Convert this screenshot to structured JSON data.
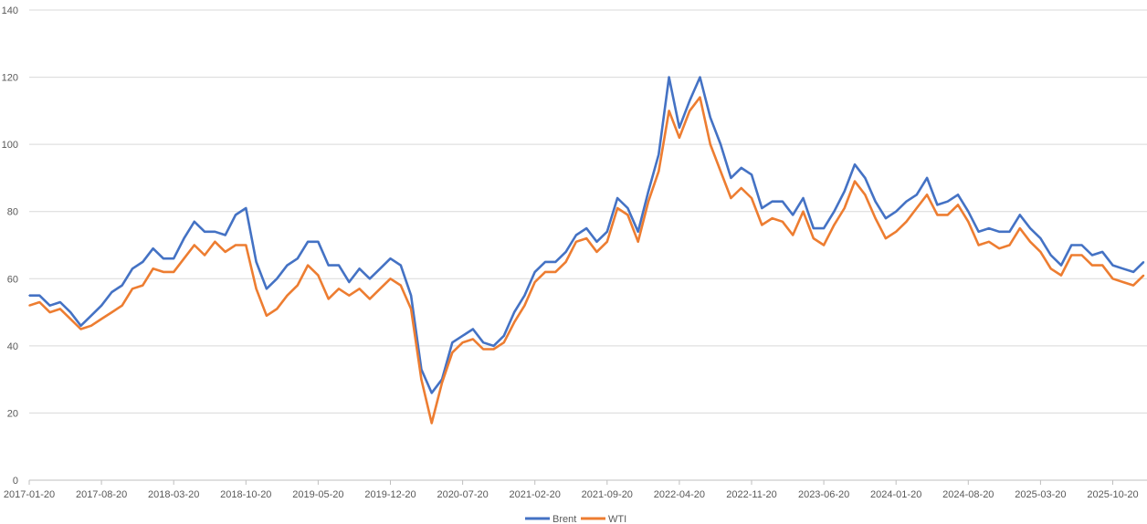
{
  "chart_data": {
    "type": "line",
    "title": "",
    "xlabel": "",
    "ylabel": "",
    "ylim": [
      0,
      140
    ],
    "yticks": [
      0,
      20,
      40,
      60,
      80,
      100,
      120,
      140
    ],
    "grid": true,
    "legend_position": "bottom",
    "x_start": "2017-01",
    "x_step": "1 month",
    "x_tick_labels": [
      "2017-01-20",
      "2017-08-20",
      "2018-03-20",
      "2018-10-20",
      "2019-05-20",
      "2019-12-20",
      "2020-07-20",
      "2021-02-20",
      "2021-09-20",
      "2022-04-20",
      "2022-11-20",
      "2023-06-20",
      "2024-01-20",
      "2024-08-20",
      "2025-03-20",
      "2025-10-20"
    ],
    "series": [
      {
        "name": "Brent",
        "color": "#4472C4",
        "values": [
          55,
          55,
          52,
          53,
          50,
          46,
          49,
          52,
          56,
          58,
          63,
          65,
          69,
          66,
          66,
          72,
          77,
          74,
          74,
          73,
          79,
          81,
          65,
          57,
          60,
          64,
          66,
          71,
          71,
          64,
          64,
          59,
          63,
          60,
          63,
          66,
          64,
          55,
          33,
          26,
          30,
          41,
          43,
          45,
          41,
          40,
          43,
          50,
          55,
          62,
          65,
          65,
          68,
          73,
          75,
          71,
          74,
          84,
          81,
          74,
          86,
          97,
          120,
          105,
          113,
          120,
          108,
          100,
          90,
          93,
          91,
          81,
          83,
          83,
          79,
          84,
          75,
          75,
          80,
          86,
          94,
          90,
          83,
          78,
          80,
          83,
          85,
          90,
          82,
          83,
          85,
          80,
          74,
          75,
          74,
          74,
          79,
          75,
          72,
          67,
          64,
          70,
          70,
          67,
          68,
          64,
          63,
          62,
          65
        ]
      },
      {
        "name": "WTI",
        "color": "#ED7D31",
        "values": [
          52,
          53,
          50,
          51,
          48,
          45,
          46,
          48,
          50,
          52,
          57,
          58,
          63,
          62,
          62,
          66,
          70,
          67,
          71,
          68,
          70,
          70,
          57,
          49,
          51,
          55,
          58,
          64,
          61,
          54,
          57,
          55,
          57,
          54,
          57,
          60,
          58,
          51,
          30,
          17,
          29,
          38,
          41,
          42,
          39,
          39,
          41,
          47,
          52,
          59,
          62,
          62,
          65,
          71,
          72,
          68,
          71,
          81,
          79,
          71,
          83,
          92,
          110,
          102,
          110,
          114,
          100,
          92,
          84,
          87,
          84,
          76,
          78,
          77,
          73,
          80,
          72,
          70,
          76,
          81,
          89,
          85,
          78,
          72,
          74,
          77,
          81,
          85,
          79,
          79,
          82,
          77,
          70,
          71,
          69,
          70,
          75,
          71,
          68,
          63,
          61,
          67,
          67,
          64,
          64,
          60,
          59,
          58,
          61
        ]
      }
    ]
  }
}
